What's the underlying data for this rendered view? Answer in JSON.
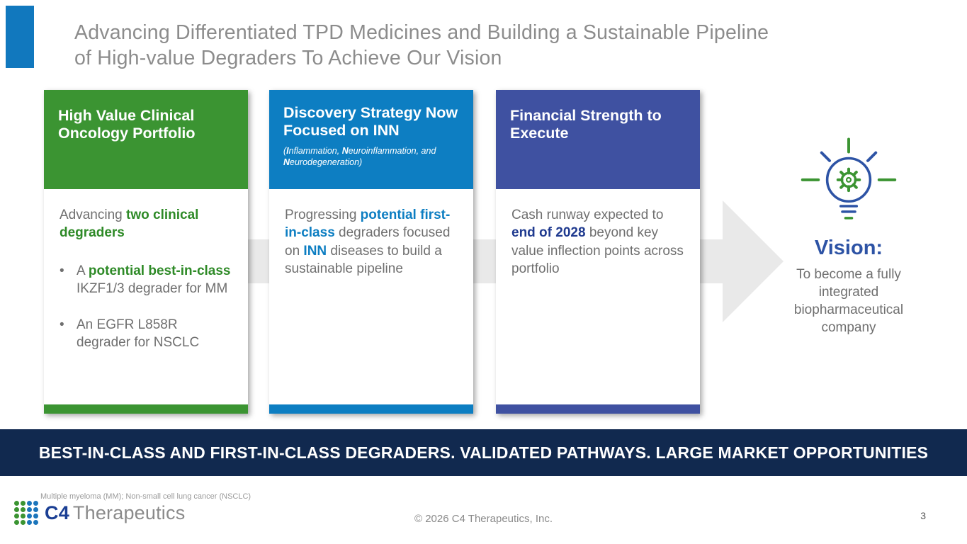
{
  "colors": {
    "green": "#2e8a27",
    "blue": "#0d7ec2",
    "indigo": "#3f51a1",
    "navy": "#1f3a8f"
  },
  "title": {
    "line1": "Advancing Differentiated TPD Medicines and Building a Sustainable Pipeline",
    "line2": "of High-value Degraders To Achieve Our Vision"
  },
  "cards": {
    "oncology": {
      "header": "High Value Clinical Oncology Portfolio",
      "intro": [
        {
          "t": "Advancing "
        },
        {
          "t": "two clinical degraders",
          "b": true,
          "c": "green"
        }
      ],
      "bullets": [
        [
          {
            "t": "A "
          },
          {
            "t": "potential best-in-class",
            "b": true,
            "c": "green"
          },
          {
            "t": " IKZF1/3 degrader for MM"
          }
        ],
        [
          {
            "t": "An EGFR L858R degrader for NSCLC"
          }
        ]
      ],
      "bullet_glyph": "•"
    },
    "discovery": {
      "header": "Discovery Strategy Now Focused on INN",
      "subheader": [
        {
          "t": "(",
          "i": true
        },
        {
          "t": "I",
          "b": true,
          "i": true
        },
        {
          "t": "nflammation, ",
          "i": true
        },
        {
          "t": "N",
          "b": true,
          "i": true
        },
        {
          "t": "euroinflammation, and ",
          "i": true
        },
        {
          "t": "N",
          "b": true,
          "i": true
        },
        {
          "t": "eurodegeneration)",
          "i": true
        }
      ],
      "body": [
        {
          "t": "Progressing "
        },
        {
          "t": "potential first-in-class",
          "b": true,
          "c": "blue"
        },
        {
          "t": " degraders focused on "
        },
        {
          "t": "INN",
          "b": true,
          "c": "blue"
        },
        {
          "t": " diseases to build a sustainable pipeline"
        }
      ]
    },
    "financial": {
      "header": "Financial Strength to Execute",
      "body": [
        {
          "t": "Cash runway expected to "
        },
        {
          "t": "end of 2028",
          "b": true,
          "c": "navy"
        },
        {
          "t": " beyond key value inflection points across portfolio"
        }
      ]
    }
  },
  "vision": {
    "label": "Vision:",
    "body": "To become a fully integrated biopharmaceutical company"
  },
  "banner": {
    "text": "BEST-IN-CLASS AND FIRST-IN-CLASS DEGRADERS. VALIDATED PATHWAYS. LARGE MARKET OPPORTUNITIES"
  },
  "footer": {
    "footnote": "Multiple myeloma (MM); Non-small cell lung cancer (NSCLC)",
    "copyright": "© 2026 C4 Therapeutics, Inc.",
    "page_number": "3",
    "logo_c4": "C4",
    "logo_therapeutics": "Therapeutics"
  }
}
